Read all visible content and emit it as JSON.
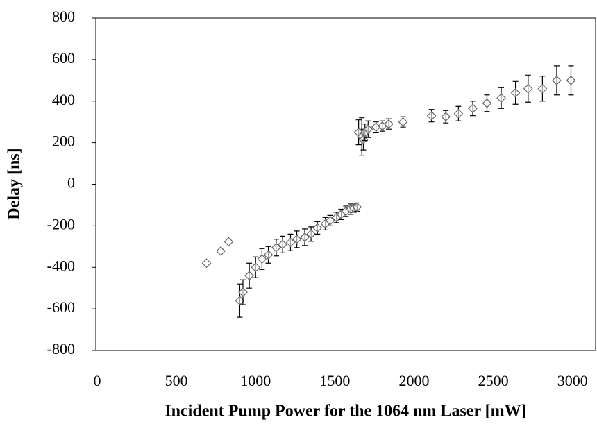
{
  "chart_data": {
    "type": "scatter",
    "x_label": "Incident Pump Power for the 1064 nm Laser [mW]",
    "y_label": "Delay [ns]",
    "xlim": [
      0,
      3150
    ],
    "ylim": [
      -800,
      800
    ],
    "xticks": [
      0,
      500,
      1000,
      1500,
      2000,
      2500,
      3000
    ],
    "yticks": [
      -800,
      -600,
      -400,
      -200,
      0,
      200,
      400,
      600,
      800
    ],
    "color": "#666666",
    "series": [
      {
        "x": [
          690,
          780,
          830
        ],
        "values": [
          -380,
          -322,
          -277
        ]
      },
      {
        "x": [
          900,
          920,
          960,
          1000,
          1040,
          1080,
          1130,
          1170,
          1220,
          1260,
          1310,
          1350,
          1390,
          1440,
          1470,
          1510,
          1540,
          1570,
          1600,
          1620,
          1640,
          1650,
          1670,
          1680,
          1690,
          1710,
          1760,
          1800,
          1840,
          1930,
          2110,
          2200,
          2280,
          2370,
          2460,
          2550,
          2640,
          2720,
          2810,
          2900,
          2990
        ],
        "values": [
          -560,
          -520,
          -440,
          -400,
          -360,
          -340,
          -305,
          -290,
          -280,
          -265,
          -255,
          -240,
          -210,
          -190,
          -175,
          -160,
          -145,
          -130,
          -120,
          -115,
          -110,
          250,
          230,
          215,
          250,
          265,
          275,
          280,
          290,
          300,
          330,
          325,
          340,
          365,
          390,
          415,
          440,
          460,
          460,
          500,
          500
        ],
        "errors": [
          80,
          60,
          60,
          50,
          50,
          40,
          40,
          40,
          40,
          40,
          40,
          35,
          30,
          30,
          25,
          25,
          25,
          25,
          25,
          20,
          20,
          60,
          90,
          50,
          40,
          40,
          25,
          25,
          25,
          25,
          30,
          30,
          35,
          35,
          40,
          50,
          55,
          65,
          60,
          70,
          70
        ]
      }
    ]
  }
}
